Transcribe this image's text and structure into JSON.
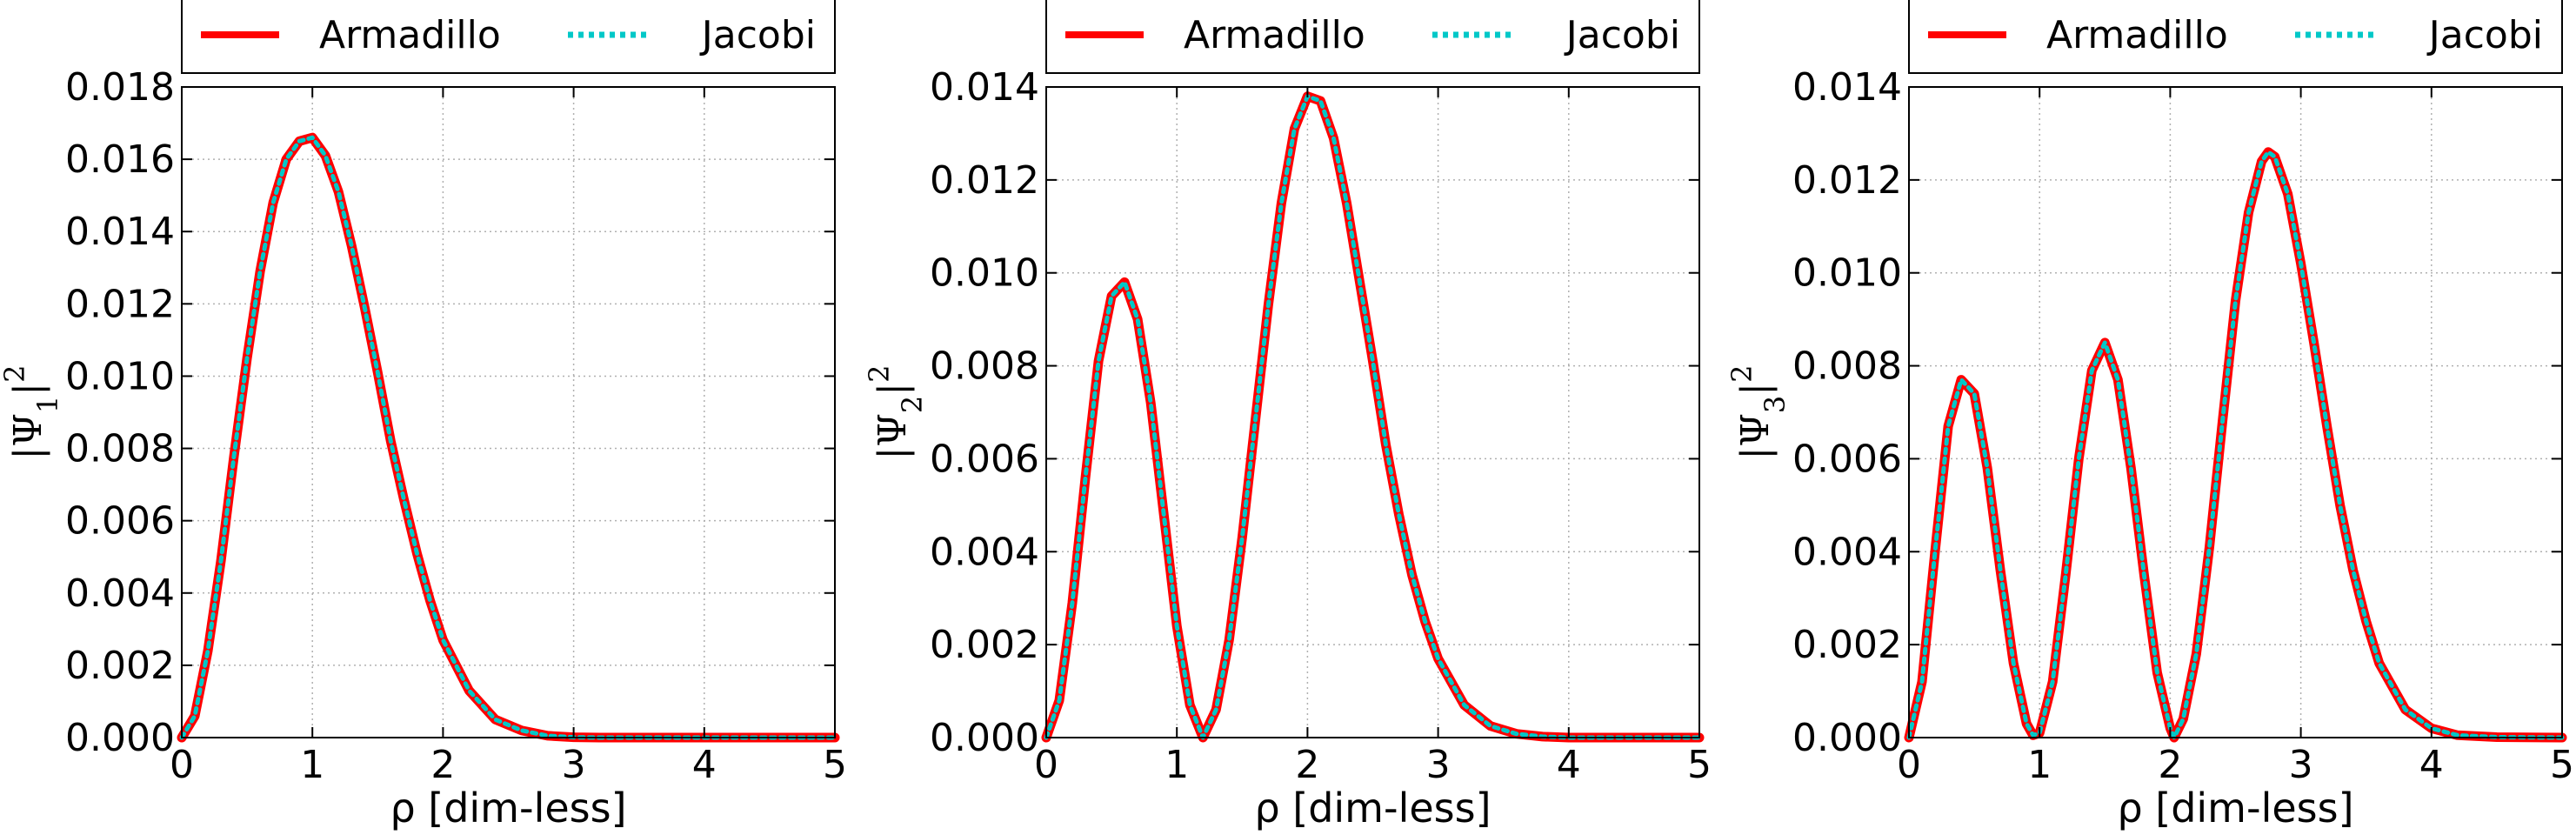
{
  "chart_data": [
    {
      "type": "line",
      "xlabel": "ρ [dim-less]",
      "ylabel": {
        "main": "|Ψ",
        "sub": "1",
        "sup": "2"
      },
      "xlim": [
        0,
        5
      ],
      "ylim": [
        0,
        0.018
      ],
      "xticks": [
        "0",
        "1",
        "2",
        "3",
        "4",
        "5"
      ],
      "yticks": [
        "0.000",
        "0.002",
        "0.004",
        "0.006",
        "0.008",
        "0.010",
        "0.012",
        "0.014",
        "0.016",
        "0.018"
      ],
      "grid": true,
      "legend": {
        "position": "top",
        "entries": [
          "Armadillo",
          "Jacobi"
        ]
      },
      "series": [
        {
          "name": "Armadillo",
          "style": "solid",
          "color": "#ff0000",
          "x": [
            0,
            0.1,
            0.2,
            0.3,
            0.4,
            0.5,
            0.6,
            0.7,
            0.8,
            0.9,
            1.0,
            1.1,
            1.2,
            1.3,
            1.4,
            1.5,
            1.6,
            1.7,
            1.8,
            1.9,
            2.0,
            2.2,
            2.4,
            2.6,
            2.8,
            3.0,
            3.2,
            3.5,
            4.0,
            4.5,
            5.0
          ],
          "y": [
            0,
            0.0006,
            0.0024,
            0.0049,
            0.0078,
            0.0105,
            0.0129,
            0.0148,
            0.016,
            0.0165,
            0.0166,
            0.0161,
            0.0151,
            0.0136,
            0.0119,
            0.0101,
            0.0082,
            0.0066,
            0.0051,
            0.0038,
            0.0027,
            0.0013,
            0.0005,
            0.0002,
            5e-05,
            1e-05,
            0,
            0,
            0,
            0,
            0
          ]
        },
        {
          "name": "Jacobi",
          "style": "dotted",
          "color": "#00c8c8",
          "x": [
            0,
            0.1,
            0.2,
            0.3,
            0.4,
            0.5,
            0.6,
            0.7,
            0.8,
            0.9,
            1.0,
            1.1,
            1.2,
            1.3,
            1.4,
            1.5,
            1.6,
            1.7,
            1.8,
            1.9,
            2.0,
            2.2,
            2.4,
            2.6,
            2.8,
            3.0,
            3.2,
            3.5,
            4.0,
            4.5,
            5.0
          ],
          "y": [
            0,
            0.0006,
            0.0024,
            0.0049,
            0.0078,
            0.0105,
            0.0129,
            0.0148,
            0.016,
            0.0165,
            0.0166,
            0.0161,
            0.0151,
            0.0136,
            0.0119,
            0.0101,
            0.0082,
            0.0066,
            0.0051,
            0.0038,
            0.0027,
            0.0013,
            0.0005,
            0.0002,
            5e-05,
            1e-05,
            0,
            0,
            0,
            0,
            0
          ]
        }
      ]
    },
    {
      "type": "line",
      "xlabel": "ρ [dim-less]",
      "ylabel": {
        "main": "|Ψ",
        "sub": "2",
        "sup": "2"
      },
      "xlim": [
        0,
        5
      ],
      "ylim": [
        0,
        0.014
      ],
      "xticks": [
        "0",
        "1",
        "2",
        "3",
        "4",
        "5"
      ],
      "yticks": [
        "0.000",
        "0.002",
        "0.004",
        "0.006",
        "0.008",
        "0.010",
        "0.012",
        "0.014"
      ],
      "grid": true,
      "legend": {
        "position": "top",
        "entries": [
          "Armadillo",
          "Jacobi"
        ]
      },
      "series": [
        {
          "name": "Armadillo",
          "style": "solid",
          "color": "#ff0000",
          "x": [
            0,
            0.1,
            0.2,
            0.3,
            0.4,
            0.5,
            0.6,
            0.7,
            0.8,
            0.9,
            1.0,
            1.1,
            1.2,
            1.3,
            1.4,
            1.5,
            1.6,
            1.7,
            1.8,
            1.9,
            2.0,
            2.1,
            2.2,
            2.3,
            2.4,
            2.5,
            2.6,
            2.7,
            2.8,
            2.9,
            3.0,
            3.2,
            3.4,
            3.6,
            3.8,
            4.0,
            4.5,
            5.0
          ],
          "y": [
            0,
            0.0008,
            0.0029,
            0.0056,
            0.0081,
            0.0095,
            0.0098,
            0.009,
            0.0072,
            0.0048,
            0.0024,
            0.0007,
            0,
            0.0006,
            0.0021,
            0.0043,
            0.0068,
            0.0093,
            0.0115,
            0.0131,
            0.0138,
            0.0137,
            0.0129,
            0.0115,
            0.0098,
            0.0081,
            0.0063,
            0.0048,
            0.0035,
            0.0025,
            0.0017,
            0.0007,
            0.00025,
            8e-05,
            2e-05,
            0,
            0,
            0
          ]
        },
        {
          "name": "Jacobi",
          "style": "dotted",
          "color": "#00c8c8",
          "x": [
            0,
            0.1,
            0.2,
            0.3,
            0.4,
            0.5,
            0.6,
            0.7,
            0.8,
            0.9,
            1.0,
            1.1,
            1.2,
            1.3,
            1.4,
            1.5,
            1.6,
            1.7,
            1.8,
            1.9,
            2.0,
            2.1,
            2.2,
            2.3,
            2.4,
            2.5,
            2.6,
            2.7,
            2.8,
            2.9,
            3.0,
            3.2,
            3.4,
            3.6,
            3.8,
            4.0,
            4.5,
            5.0
          ],
          "y": [
            0,
            0.0008,
            0.0029,
            0.0056,
            0.0081,
            0.0095,
            0.0098,
            0.009,
            0.0072,
            0.0048,
            0.0024,
            0.0007,
            0,
            0.0006,
            0.0021,
            0.0043,
            0.0068,
            0.0093,
            0.0115,
            0.0131,
            0.0138,
            0.0137,
            0.0129,
            0.0115,
            0.0098,
            0.0081,
            0.0063,
            0.0048,
            0.0035,
            0.0025,
            0.0017,
            0.0007,
            0.00025,
            8e-05,
            2e-05,
            0,
            0,
            0
          ]
        }
      ]
    },
    {
      "type": "line",
      "xlabel": "ρ [dim-less]",
      "ylabel": {
        "main": "|Ψ",
        "sub": "3",
        "sup": "2"
      },
      "xlim": [
        0,
        5
      ],
      "ylim": [
        0,
        0.014
      ],
      "xticks": [
        "0",
        "1",
        "2",
        "3",
        "4",
        "5"
      ],
      "yticks": [
        "0.000",
        "0.002",
        "0.004",
        "0.006",
        "0.008",
        "0.010",
        "0.012",
        "0.014"
      ],
      "grid": true,
      "legend": {
        "position": "top",
        "entries": [
          "Armadillo",
          "Jacobi"
        ]
      },
      "series": [
        {
          "name": "Armadillo",
          "style": "solid",
          "color": "#ff0000",
          "x": [
            0,
            0.1,
            0.2,
            0.3,
            0.4,
            0.5,
            0.6,
            0.7,
            0.8,
            0.9,
            0.95,
            1.0,
            1.1,
            1.2,
            1.3,
            1.4,
            1.5,
            1.6,
            1.7,
            1.8,
            1.9,
            2.0,
            2.03,
            2.1,
            2.2,
            2.3,
            2.4,
            2.5,
            2.6,
            2.7,
            2.75,
            2.8,
            2.9,
            3.0,
            3.1,
            3.2,
            3.3,
            3.4,
            3.5,
            3.6,
            3.8,
            4.0,
            4.2,
            4.5,
            5.0
          ],
          "y": [
            0,
            0.0012,
            0.004,
            0.0067,
            0.0077,
            0.0074,
            0.0058,
            0.0036,
            0.0016,
            0.0003,
            5e-05,
            0.0001,
            0.0012,
            0.0035,
            0.006,
            0.0079,
            0.0085,
            0.0077,
            0.0058,
            0.0035,
            0.0014,
            0.0002,
            0,
            0.0004,
            0.0018,
            0.0041,
            0.0068,
            0.0094,
            0.0113,
            0.0124,
            0.0126,
            0.0125,
            0.0117,
            0.0102,
            0.0085,
            0.0067,
            0.005,
            0.0036,
            0.0025,
            0.0016,
            0.0006,
            0.0002,
            5e-05,
            1e-05,
            0
          ]
        },
        {
          "name": "Jacobi",
          "style": "dotted",
          "color": "#00c8c8",
          "x": [
            0,
            0.1,
            0.2,
            0.3,
            0.4,
            0.5,
            0.6,
            0.7,
            0.8,
            0.9,
            0.95,
            1.0,
            1.1,
            1.2,
            1.3,
            1.4,
            1.5,
            1.6,
            1.7,
            1.8,
            1.9,
            2.0,
            2.03,
            2.1,
            2.2,
            2.3,
            2.4,
            2.5,
            2.6,
            2.7,
            2.75,
            2.8,
            2.9,
            3.0,
            3.1,
            3.2,
            3.3,
            3.4,
            3.5,
            3.6,
            3.8,
            4.0,
            4.2,
            4.5,
            5.0
          ],
          "y": [
            0,
            0.0012,
            0.004,
            0.0067,
            0.0077,
            0.0074,
            0.0058,
            0.0036,
            0.0016,
            0.0003,
            5e-05,
            0.0001,
            0.0012,
            0.0035,
            0.006,
            0.0079,
            0.0085,
            0.0077,
            0.0058,
            0.0035,
            0.0014,
            0.0002,
            0,
            0.0004,
            0.0018,
            0.0041,
            0.0068,
            0.0094,
            0.0113,
            0.0124,
            0.0126,
            0.0125,
            0.0117,
            0.0102,
            0.0085,
            0.0067,
            0.005,
            0.0036,
            0.0025,
            0.0016,
            0.0006,
            0.0002,
            5e-05,
            1e-05,
            0
          ]
        }
      ]
    }
  ]
}
